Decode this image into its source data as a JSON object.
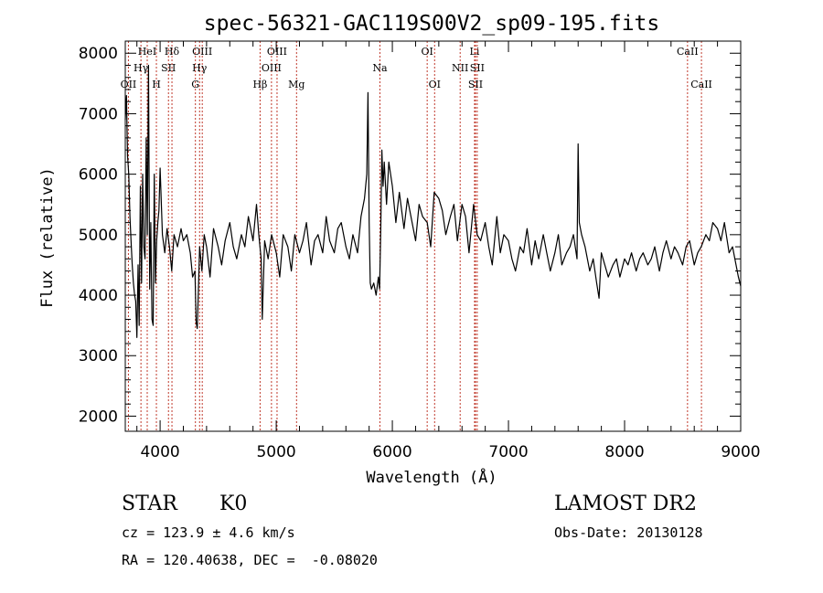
{
  "colors": {
    "spectrum": "#000000",
    "marker": "#c0392b",
    "axis": "#000000"
  },
  "chart_data": {
    "type": "line",
    "title": "spec-56321-GAC119S00V2_sp09-195.fits",
    "xlabel": "Wavelength (Å)",
    "ylabel": "Flux (relative)",
    "xlim": [
      3700,
      9000
    ],
    "ylim": [
      1750,
      8200
    ],
    "xticks": [
      4000,
      5000,
      6000,
      7000,
      8000,
      9000
    ],
    "yticks": [
      2000,
      3000,
      4000,
      5000,
      6000,
      7000,
      8000
    ],
    "series": [
      {
        "x": [
          3700,
          3710,
          3720,
          3730,
          3740,
          3750,
          3760,
          3770,
          3780,
          3790,
          3800,
          3810,
          3820,
          3830,
          3840,
          3850,
          3860,
          3870,
          3880,
          3890,
          3900,
          3910,
          3920,
          3930,
          3940,
          3950,
          3960,
          3970,
          3980,
          3990,
          4000,
          4020,
          4040,
          4060,
          4080,
          4100,
          4120,
          4150,
          4180,
          4200,
          4230,
          4260,
          4280,
          4300,
          4310,
          4320,
          4330,
          4340,
          4360,
          4380,
          4400,
          4430,
          4460,
          4500,
          4530,
          4560,
          4600,
          4630,
          4660,
          4700,
          4730,
          4760,
          4800,
          4830,
          4850,
          4860,
          4870,
          4880,
          4900,
          4930,
          4960,
          5000,
          5030,
          5060,
          5100,
          5130,
          5160,
          5200,
          5230,
          5260,
          5300,
          5330,
          5360,
          5400,
          5430,
          5460,
          5500,
          5530,
          5560,
          5600,
          5630,
          5660,
          5700,
          5730,
          5760,
          5780,
          5790,
          5800,
          5810,
          5820,
          5840,
          5860,
          5880,
          5890,
          5900,
          5910,
          5920,
          5930,
          5950,
          5970,
          6000,
          6030,
          6060,
          6100,
          6130,
          6160,
          6200,
          6230,
          6260,
          6300,
          6330,
          6360,
          6400,
          6430,
          6460,
          6500,
          6530,
          6560,
          6600,
          6630,
          6660,
          6700,
          6730,
          6760,
          6800,
          6830,
          6860,
          6900,
          6930,
          6960,
          7000,
          7030,
          7060,
          7100,
          7130,
          7160,
          7200,
          7230,
          7260,
          7300,
          7330,
          7360,
          7400,
          7430,
          7460,
          7500,
          7530,
          7560,
          7590,
          7600,
          7610,
          7630,
          7660,
          7700,
          7730,
          7760,
          7780,
          7800,
          7830,
          7860,
          7900,
          7930,
          7960,
          8000,
          8030,
          8060,
          8100,
          8130,
          8160,
          8200,
          8230,
          8260,
          8300,
          8330,
          8360,
          8400,
          8430,
          8460,
          8500,
          8530,
          8560,
          8600,
          8630,
          8660,
          8700,
          8730,
          8760,
          8800,
          8830,
          8860,
          8900,
          8930,
          8960,
          8980,
          9000
        ],
        "y": [
          6900,
          7300,
          6300,
          6000,
          5300,
          4900,
          4500,
          4200,
          4000,
          3900,
          3300,
          4500,
          3500,
          5800,
          4200,
          6000,
          4800,
          4600,
          6600,
          5000,
          7800,
          4100,
          5200,
          3600,
          3500,
          6000,
          4200,
          4900,
          5200,
          5400,
          6100,
          5000,
          4700,
          5100,
          4800,
          4400,
          5000,
          4800,
          5100,
          4900,
          5000,
          4700,
          4300,
          4400,
          3550,
          3450,
          4100,
          4800,
          4400,
          5000,
          4800,
          4300,
          5100,
          4800,
          4500,
          4900,
          5200,
          4800,
          4600,
          5000,
          4800,
          5300,
          4900,
          5500,
          5000,
          4800,
          4600,
          3600,
          4900,
          4600,
          5000,
          4700,
          4300,
          5000,
          4800,
          4400,
          5000,
          4700,
          4900,
          5200,
          4500,
          4900,
          5000,
          4700,
          5300,
          4900,
          4700,
          5100,
          5200,
          4800,
          4600,
          5000,
          4700,
          5300,
          5600,
          6000,
          7350,
          5200,
          4200,
          4100,
          4200,
          4000,
          4300,
          4100,
          5100,
          6400,
          5800,
          6200,
          5500,
          6200,
          5800,
          5200,
          5700,
          5100,
          5600,
          5300,
          4900,
          5500,
          5300,
          5200,
          4800,
          5700,
          5600,
          5400,
          5000,
          5300,
          5500,
          4900,
          5500,
          5300,
          4700,
          5500,
          5000,
          4900,
          5200,
          4800,
          4500,
          5300,
          4700,
          5000,
          4900,
          4600,
          4400,
          4800,
          4700,
          5100,
          4500,
          4900,
          4600,
          5000,
          4700,
          4400,
          4700,
          5000,
          4500,
          4700,
          4800,
          5000,
          4600,
          6500,
          5200,
          5000,
          4800,
          4400,
          4600,
          4200,
          3950,
          4700,
          4500,
          4300,
          4500,
          4600,
          4300,
          4600,
          4500,
          4700,
          4400,
          4600,
          4700,
          4500,
          4600,
          4800,
          4400,
          4700,
          4900,
          4600,
          4800,
          4700,
          4500,
          4800,
          4900,
          4500,
          4700,
          4800,
          5000,
          4900,
          5200,
          5100,
          4900,
          5200,
          4700,
          4800,
          4500,
          4300,
          4150
        ]
      }
    ],
    "lines_top": [
      {
        "label": "HeI",
        "x": 3889
      },
      {
        "label": "Hδ",
        "x": 4102
      },
      {
        "label": "OIII",
        "x": 4363
      },
      {
        "label": "OIII",
        "x": 5007
      },
      {
        "label": "OI",
        "x": 6300
      },
      {
        "label": "Li",
        "x": 6708
      },
      {
        "label": "CaII",
        "x": 8542
      }
    ],
    "lines_mid": [
      {
        "label": "Hγ",
        "x": 3835
      },
      {
        "label": "SII",
        "x": 4072
      },
      {
        "label": "Hγ",
        "x": 4340
      },
      {
        "label": "OIII",
        "x": 4959
      },
      {
        "label": "Na",
        "x": 5893
      },
      {
        "label": "NII",
        "x": 6584
      },
      {
        "label": "SII",
        "x": 6731
      }
    ],
    "lines_low": [
      {
        "label": "OII",
        "x": 3727
      },
      {
        "label": "H",
        "x": 3968
      },
      {
        "label": "G",
        "x": 4304
      },
      {
        "label": "Hβ",
        "x": 4861
      },
      {
        "label": "Mg",
        "x": 5175
      },
      {
        "label": "OI",
        "x": 6364
      },
      {
        "label": "SII",
        "x": 6716
      },
      {
        "label": "CaII",
        "x": 8662
      }
    ]
  },
  "info": {
    "obj_class": "STAR",
    "subclass": "K0",
    "survey": "LAMOST DR2",
    "cz": "cz = 123.9 ± 4.6 km/s",
    "obs_date": "Obs-Date: 20130128",
    "radec": "RA = 120.40638, DEC =  -0.08020"
  }
}
